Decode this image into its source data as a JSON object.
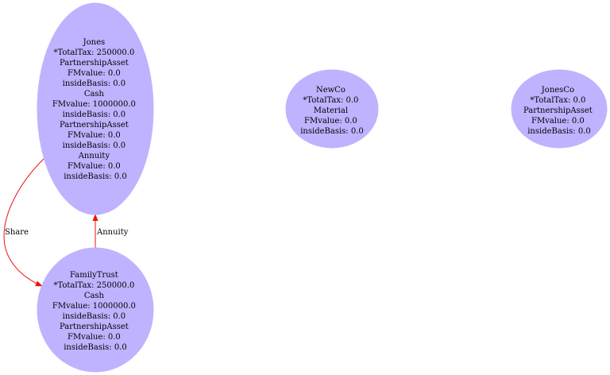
{
  "colors": {
    "node_fill": "#bfb3ff",
    "edge": "#ee1111",
    "background": "#ffffff"
  },
  "nodes": [
    {
      "id": "jones",
      "lines": [
        "Jones",
        "*TotalTax: 250000.0",
        "PartnershipAsset",
        "FMvalue: 0.0",
        "insideBasis: 0.0",
        "Cash",
        "FMvalue: 1000000.0",
        "insideBasis: 0.0",
        "PartnershipAsset",
        "FMvalue: 0.0",
        "insideBasis: 0.0",
        "Annuity",
        "FMvalue: 0.0",
        "insideBasis: 0.0"
      ]
    },
    {
      "id": "newco",
      "lines": [
        "NewCo",
        "*TotalTax: 0.0",
        "Material",
        "FMvalue: 0.0",
        "insideBasis: 0.0"
      ]
    },
    {
      "id": "jonesco",
      "lines": [
        "JonesCo",
        "*TotalTax: 0.0",
        "PartnershipAsset",
        "FMvalue: 0.0",
        "insideBasis: 0.0"
      ]
    },
    {
      "id": "familytrust",
      "lines": [
        "FamilyTrust",
        "*TotalTax: 250000.0",
        "Cash",
        "FMvalue: 1000000.0",
        "insideBasis: 0.0",
        "PartnershipAsset",
        "FMvalue: 0.0",
        "insideBasis: 0.0"
      ]
    }
  ],
  "edges": [
    {
      "id": "share",
      "from": "jones",
      "to": "familytrust",
      "label": "Share"
    },
    {
      "id": "annuity",
      "from": "familytrust",
      "to": "jones",
      "label": "Annuity"
    }
  ]
}
